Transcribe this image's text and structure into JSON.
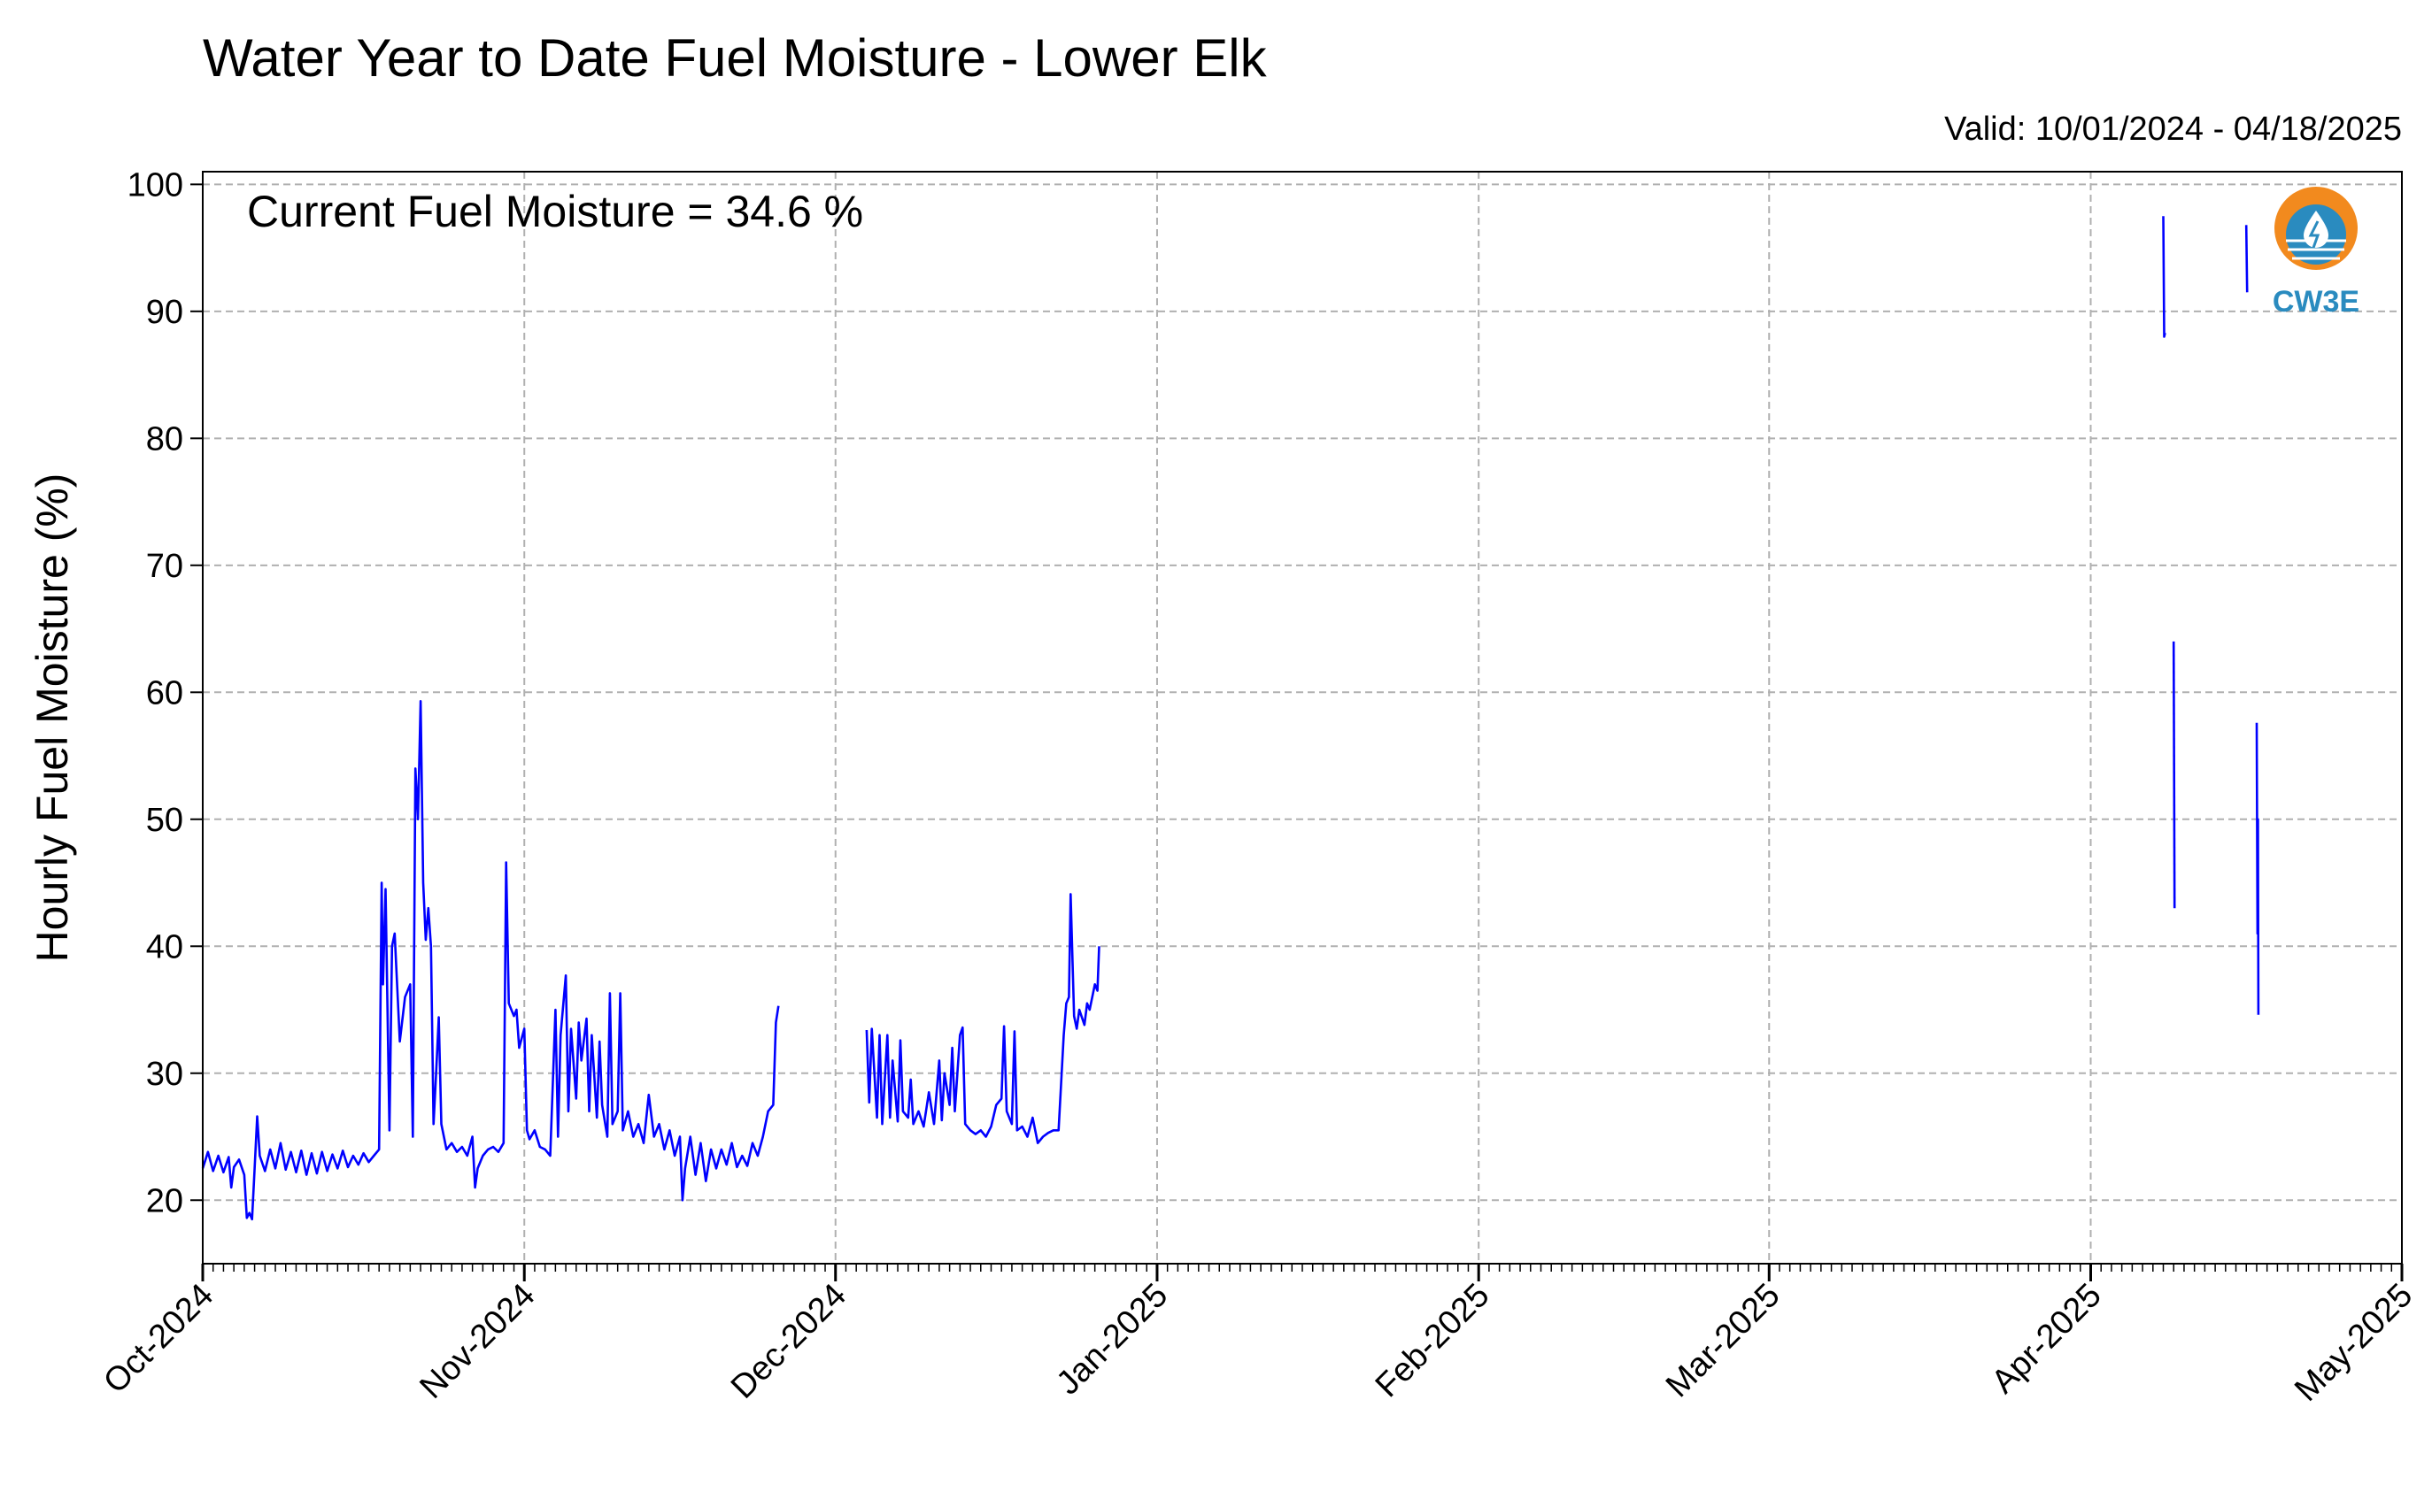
{
  "chart_data": {
    "type": "line",
    "title": "Water Year to Date Fuel Moisture - Lower Elk",
    "subtitle": "Valid: 10/01/2024 - 04/18/2025",
    "ylabel": "Hourly Fuel Moisture (%)",
    "xlabel": "",
    "annotation": "Current Fuel Moisture = 34.6 %",
    "logo_text": "CW3E",
    "xlim": [
      "2024-10-01",
      "2025-05-01"
    ],
    "ylim": [
      15,
      101
    ],
    "yticks": [
      20,
      30,
      40,
      50,
      60,
      70,
      80,
      90,
      100
    ],
    "xticks": [
      {
        "date": "2024-10-01",
        "label": "Oct-2024"
      },
      {
        "date": "2024-11-01",
        "label": "Nov-2024"
      },
      {
        "date": "2024-12-01",
        "label": "Dec-2024"
      },
      {
        "date": "2025-01-01",
        "label": "Jan-2025"
      },
      {
        "date": "2025-02-01",
        "label": "Feb-2025"
      },
      {
        "date": "2025-03-01",
        "label": "Mar-2025"
      },
      {
        "date": "2025-04-01",
        "label": "Apr-2025"
      },
      {
        "date": "2025-05-01",
        "label": "May-2025"
      }
    ],
    "grid": true,
    "line_color": "#0000ff",
    "series": [
      {
        "segments": [
          [
            [
              "2024-10-01",
              22.5
            ],
            [
              "2024-10-01T12",
              23.8
            ],
            [
              "2024-10-02",
              22.3
            ],
            [
              "2024-10-02T12",
              23.5
            ],
            [
              "2024-10-03",
              22.2
            ],
            [
              "2024-10-03T12",
              23.4
            ],
            [
              "2024-10-03T18",
              21.0
            ],
            [
              "2024-10-04",
              22.6
            ],
            [
              "2024-10-04T12",
              23.2
            ],
            [
              "2024-10-05",
              22.0
            ],
            [
              "2024-10-05T06",
              18.6
            ],
            [
              "2024-10-05T12",
              19.0
            ],
            [
              "2024-10-05T18",
              18.5
            ],
            [
              "2024-10-06",
              22.5
            ],
            [
              "2024-10-06T06",
              26.6
            ],
            [
              "2024-10-06T12",
              23.5
            ],
            [
              "2024-10-07",
              22.3
            ],
            [
              "2024-10-07T12",
              24.0
            ],
            [
              "2024-10-08",
              22.5
            ],
            [
              "2024-10-08T12",
              24.5
            ],
            [
              "2024-10-09",
              22.4
            ],
            [
              "2024-10-09T12",
              23.8
            ],
            [
              "2024-10-10",
              22.2
            ],
            [
              "2024-10-10T12",
              23.9
            ],
            [
              "2024-10-11",
              22.0
            ],
            [
              "2024-10-11T12",
              23.7
            ],
            [
              "2024-10-12",
              22.1
            ],
            [
              "2024-10-12T12",
              23.8
            ],
            [
              "2024-10-13",
              22.3
            ],
            [
              "2024-10-13T12",
              23.6
            ],
            [
              "2024-10-14",
              22.5
            ],
            [
              "2024-10-14T12",
              23.9
            ],
            [
              "2024-10-15",
              22.6
            ],
            [
              "2024-10-15T12",
              23.5
            ],
            [
              "2024-10-16",
              22.8
            ],
            [
              "2024-10-16T12",
              23.7
            ],
            [
              "2024-10-17",
              23.0
            ],
            [
              "2024-10-17T12",
              23.5
            ],
            [
              "2024-10-18",
              24.0
            ],
            [
              "2024-10-18T06",
              45.0
            ],
            [
              "2024-10-18T09",
              37.0
            ],
            [
              "2024-10-18T15",
              44.5
            ],
            [
              "2024-10-19",
              25.5
            ],
            [
              "2024-10-19T06",
              40.0
            ],
            [
              "2024-10-19T12",
              41.0
            ],
            [
              "2024-10-20",
              32.5
            ],
            [
              "2024-10-20T12",
              36.0
            ],
            [
              "2024-10-21",
              37.0
            ],
            [
              "2024-10-21T06",
              25.0
            ],
            [
              "2024-10-21T12",
              54.0
            ],
            [
              "2024-10-21T18",
              50.0
            ],
            [
              "2024-10-22",
              59.3
            ],
            [
              "2024-10-22T06",
              45.0
            ],
            [
              "2024-10-22T12",
              40.5
            ],
            [
              "2024-10-22T18",
              43.0
            ],
            [
              "2024-10-23",
              40.0
            ],
            [
              "2024-10-23T06",
              26.0
            ],
            [
              "2024-10-23T12",
              30.0
            ],
            [
              "2024-10-23T18",
              34.4
            ],
            [
              "2024-10-24",
              26.0
            ],
            [
              "2024-10-24T12",
              24.0
            ],
            [
              "2024-10-25",
              24.5
            ],
            [
              "2024-10-25T12",
              23.8
            ],
            [
              "2024-10-26",
              24.2
            ],
            [
              "2024-10-26T12",
              23.5
            ],
            [
              "2024-10-27",
              25.0
            ],
            [
              "2024-10-27T06",
              21.0
            ],
            [
              "2024-10-27T12",
              22.5
            ],
            [
              "2024-10-28",
              23.5
            ],
            [
              "2024-10-28T12",
              24.0
            ],
            [
              "2024-10-29",
              24.2
            ],
            [
              "2024-10-29T12",
              23.8
            ],
            [
              "2024-10-30",
              24.5
            ],
            [
              "2024-10-30T06",
              46.6
            ],
            [
              "2024-10-30T12",
              35.5
            ],
            [
              "2024-10-31",
              34.5
            ],
            [
              "2024-10-31T06",
              35.0
            ],
            [
              "2024-10-31T12",
              32.0
            ],
            [
              "2024-11-01",
              33.5
            ],
            [
              "2024-11-01T06",
              25.5
            ],
            [
              "2024-11-01T12",
              24.8
            ],
            [
              "2024-11-02",
              25.5
            ],
            [
              "2024-11-02T12",
              24.2
            ],
            [
              "2024-11-03",
              24.0
            ],
            [
              "2024-11-03T12",
              23.5
            ],
            [
              "2024-11-04",
              35.0
            ],
            [
              "2024-11-04T06",
              25.0
            ],
            [
              "2024-11-04T12",
              33.0
            ],
            [
              "2024-11-05",
              37.7
            ],
            [
              "2024-11-05T06",
              27.0
            ],
            [
              "2024-11-05T12",
              33.5
            ],
            [
              "2024-11-06",
              28.0
            ],
            [
              "2024-11-06T06",
              34.0
            ],
            [
              "2024-11-06T12",
              31.0
            ],
            [
              "2024-11-07",
              34.3
            ],
            [
              "2024-11-07T06",
              27.0
            ],
            [
              "2024-11-07T12",
              33.0
            ],
            [
              "2024-11-08",
              26.5
            ],
            [
              "2024-11-08T06",
              32.5
            ],
            [
              "2024-11-08T12",
              27.5
            ],
            [
              "2024-11-09",
              25.0
            ],
            [
              "2024-11-09T06",
              36.3
            ],
            [
              "2024-11-09T12",
              26.0
            ],
            [
              "2024-11-10",
              27.0
            ],
            [
              "2024-11-10T06",
              36.3
            ],
            [
              "2024-11-10T12",
              25.5
            ],
            [
              "2024-11-11",
              27.0
            ],
            [
              "2024-11-11T12",
              25.0
            ],
            [
              "2024-11-12",
              26.0
            ],
            [
              "2024-11-12T12",
              24.5
            ],
            [
              "2024-11-13",
              28.3
            ],
            [
              "2024-11-13T12",
              25.0
            ],
            [
              "2024-11-14",
              26.0
            ],
            [
              "2024-11-14T12",
              24.0
            ],
            [
              "2024-11-15",
              25.5
            ],
            [
              "2024-11-15T12",
              23.5
            ],
            [
              "2024-11-16",
              25.0
            ],
            [
              "2024-11-16T06",
              20.0
            ],
            [
              "2024-11-16T12",
              22.5
            ],
            [
              "2024-11-17",
              25.0
            ],
            [
              "2024-11-17T12",
              22.0
            ],
            [
              "2024-11-18",
              24.5
            ],
            [
              "2024-11-18T12",
              21.5
            ],
            [
              "2024-11-19",
              24.0
            ],
            [
              "2024-11-19T12",
              22.5
            ],
            [
              "2024-11-20",
              24.0
            ],
            [
              "2024-11-20T12",
              22.8
            ],
            [
              "2024-11-21",
              24.5
            ],
            [
              "2024-11-21T12",
              22.6
            ],
            [
              "2024-11-22",
              23.5
            ],
            [
              "2024-11-22T12",
              22.7
            ],
            [
              "2024-11-23",
              24.5
            ],
            [
              "2024-11-23T12",
              23.5
            ],
            [
              "2024-11-24",
              25.0
            ],
            [
              "2024-11-24T12",
              27.0
            ],
            [
              "2024-11-25",
              27.5
            ],
            [
              "2024-11-25T06",
              34.0
            ],
            [
              "2024-11-25T12",
              35.3
            ]
          ],
          [
            [
              "2024-12-04",
              33.4
            ],
            [
              "2024-12-04T06",
              27.7
            ],
            [
              "2024-12-04T12",
              33.5
            ],
            [
              "2024-12-05",
              26.5
            ],
            [
              "2024-12-05T06",
              33.0
            ],
            [
              "2024-12-05T12",
              26.0
            ],
            [
              "2024-12-06",
              33.0
            ],
            [
              "2024-12-06T06",
              26.5
            ],
            [
              "2024-12-06T12",
              31.0
            ],
            [
              "2024-12-07",
              26.2
            ],
            [
              "2024-12-07T06",
              32.6
            ],
            [
              "2024-12-07T12",
              27.0
            ],
            [
              "2024-12-08",
              26.5
            ],
            [
              "2024-12-08T06",
              29.5
            ],
            [
              "2024-12-08T12",
              26.0
            ],
            [
              "2024-12-09",
              27.0
            ],
            [
              "2024-12-09T12",
              25.8
            ],
            [
              "2024-12-10",
              28.5
            ],
            [
              "2024-12-10T12",
              26.0
            ],
            [
              "2024-12-11",
              31.0
            ],
            [
              "2024-12-11T06",
              26.3
            ],
            [
              "2024-12-11T12",
              30.0
            ],
            [
              "2024-12-12",
              27.5
            ],
            [
              "2024-12-12T06",
              32.0
            ],
            [
              "2024-12-12T12",
              27.0
            ],
            [
              "2024-12-13",
              33.0
            ],
            [
              "2024-12-13T06",
              33.6
            ],
            [
              "2024-12-13T12",
              26.0
            ],
            [
              "2024-12-14",
              25.5
            ],
            [
              "2024-12-14T12",
              25.2
            ],
            [
              "2024-12-15",
              25.5
            ],
            [
              "2024-12-15T12",
              25.0
            ],
            [
              "2024-12-16",
              25.8
            ],
            [
              "2024-12-16T12",
              27.5
            ],
            [
              "2024-12-17",
              28.0
            ],
            [
              "2024-12-17T06",
              33.7
            ],
            [
              "2024-12-17T12",
              27.0
            ],
            [
              "2024-12-18",
              26.0
            ],
            [
              "2024-12-18T06",
              33.3
            ],
            [
              "2024-12-18T12",
              25.5
            ],
            [
              "2024-12-19",
              25.8
            ],
            [
              "2024-12-19T12",
              25.0
            ],
            [
              "2024-12-20",
              26.5
            ],
            [
              "2024-12-20T12",
              24.5
            ],
            [
              "2024-12-21",
              25.0
            ],
            [
              "2024-12-21T12",
              25.3
            ],
            [
              "2024-12-22",
              25.5
            ],
            [
              "2024-12-22T12",
              25.5
            ],
            [
              "2024-12-23",
              33.0
            ],
            [
              "2024-12-23T06",
              35.5
            ],
            [
              "2024-12-23T12",
              36.0
            ],
            [
              "2024-12-23T16",
              44.1
            ],
            [
              "2024-12-24",
              34.5
            ],
            [
              "2024-12-24T06",
              33.5
            ],
            [
              "2024-12-24T12",
              35.0
            ],
            [
              "2024-12-25",
              33.8
            ],
            [
              "2024-12-25T06",
              35.5
            ],
            [
              "2024-12-25T12",
              35.0
            ],
            [
              "2024-12-26",
              37.0
            ],
            [
              "2024-12-26T06",
              36.5
            ],
            [
              "2024-12-26T10",
              40.0
            ]
          ],
          [
            [
              "2025-04-08",
              97.5
            ],
            [
              "2025-04-08T02",
              88.0
            ],
            [
              "2025-04-08T04",
              88.3
            ]
          ],
          [
            [
              "2025-04-09",
              64.0
            ],
            [
              "2025-04-09T02",
              43.0
            ]
          ],
          [
            [
              "2025-04-16",
              96.8
            ],
            [
              "2025-04-16T02",
              91.5
            ]
          ],
          [
            [
              "2025-04-17",
              57.6
            ],
            [
              "2025-04-17T02",
              41.0
            ],
            [
              "2025-04-17T03",
              50.0
            ],
            [
              "2025-04-17T04",
              34.6
            ]
          ]
        ]
      }
    ]
  }
}
